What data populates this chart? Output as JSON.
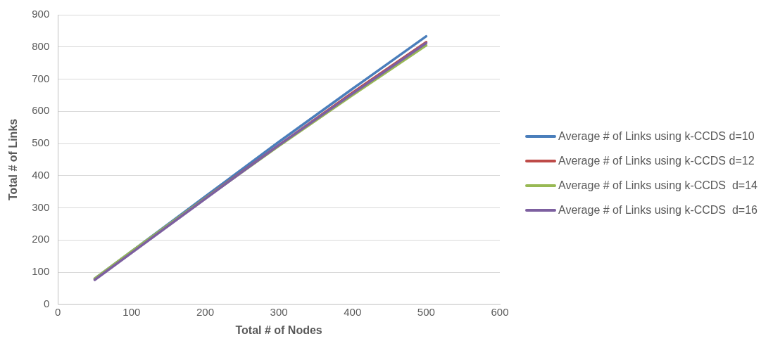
{
  "chart_data": {
    "type": "line",
    "xlabel": "Total # of Nodes",
    "ylabel": "Total # of Links",
    "x": [
      50,
      100,
      200,
      300,
      400,
      500
    ],
    "series": [
      {
        "name": "Average # of Links using k-CCDS d=10",
        "color": "#4a7ebb",
        "values": [
          80,
          165,
          335,
          505,
          670,
          833
        ]
      },
      {
        "name": "Average # of Links using k-CCDS d=12",
        "color": "#be4b48",
        "values": [
          78,
          162,
          330,
          495,
          658,
          815
        ]
      },
      {
        "name": "Average # of Links using k-CCDS  d=14",
        "color": "#98b954",
        "values": [
          80,
          165,
          330,
          492,
          650,
          805
        ]
      },
      {
        "name": "Average # of Links using k-CCDS  d=16",
        "color": "#7d60a0",
        "values": [
          76,
          160,
          328,
          495,
          655,
          812
        ]
      }
    ],
    "xlim": [
      0,
      600
    ],
    "xticks": [
      0,
      100,
      200,
      300,
      400,
      500,
      600
    ],
    "ylim": [
      0,
      900
    ],
    "yticks": [
      0,
      100,
      200,
      300,
      400,
      500,
      600,
      700,
      800,
      900
    ],
    "grid": "y",
    "legend": "right",
    "marker": "none",
    "line_style": "solid"
  }
}
